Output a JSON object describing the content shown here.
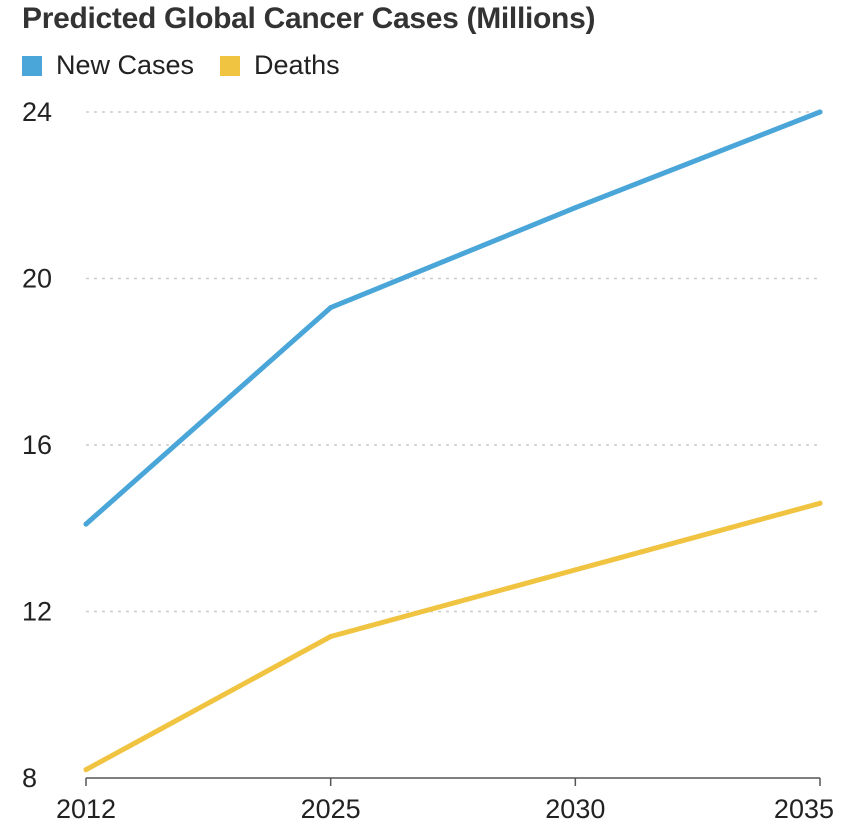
{
  "chart_data": {
    "type": "line",
    "title": "Predicted Global Cancer Cases (Millions)",
    "xlabel": "",
    "ylabel": "",
    "x": [
      "2012",
      "2025",
      "2030",
      "2035"
    ],
    "ylim": [
      8,
      24
    ],
    "yticks": [
      8,
      12,
      16,
      20,
      24
    ],
    "grid": true,
    "legend_position": "top-left",
    "series": [
      {
        "name": "New Cases",
        "color": "#4aa6d9",
        "values": [
          14.1,
          19.3,
          21.7,
          24.0
        ]
      },
      {
        "name": "Deaths",
        "color": "#f0c340",
        "values": [
          8.2,
          11.4,
          13.0,
          14.6
        ]
      }
    ]
  }
}
